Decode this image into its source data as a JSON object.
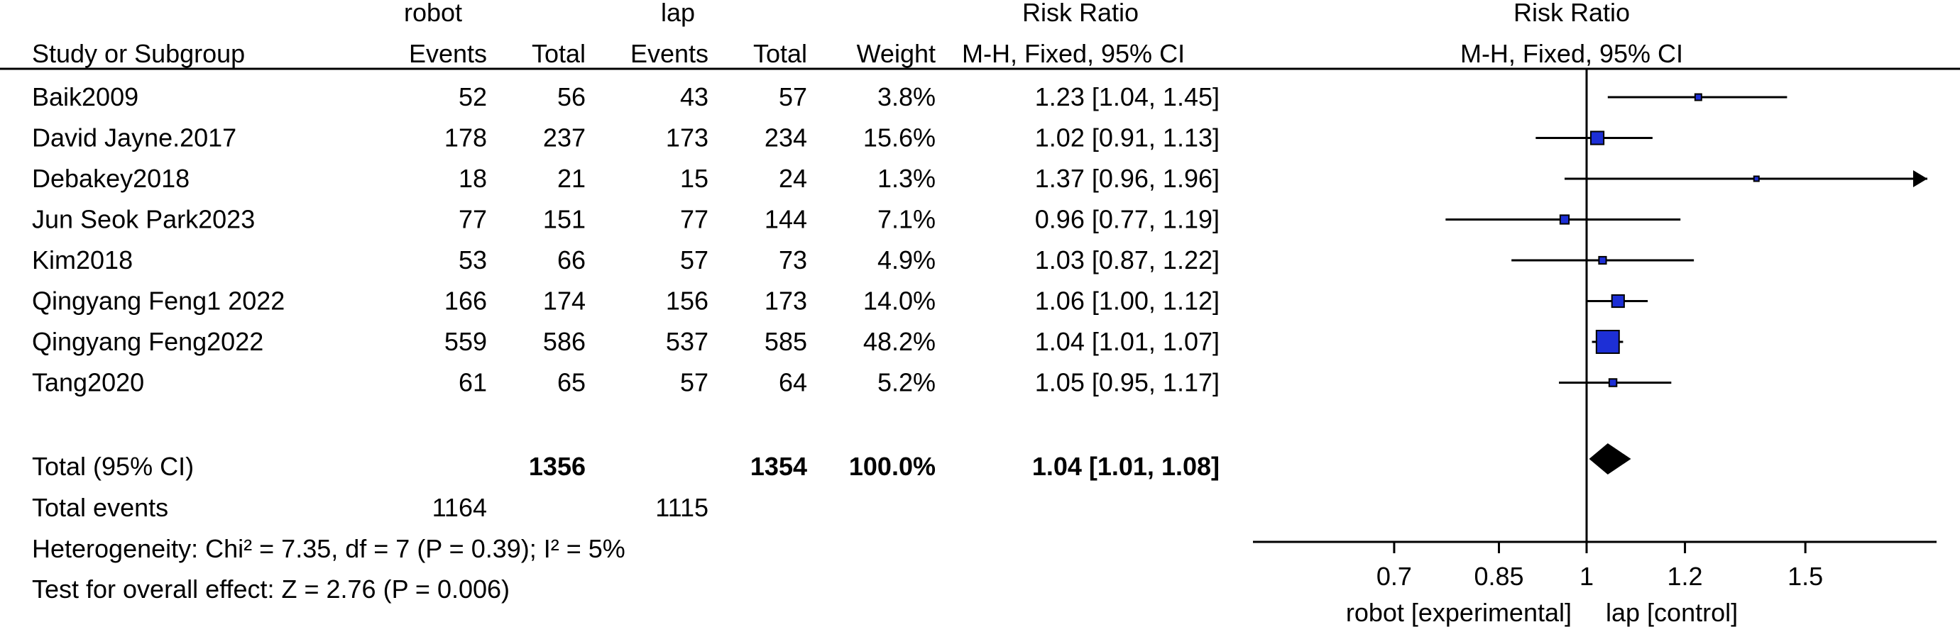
{
  "chart_data": {
    "type": "forest",
    "header": {
      "group_robot": "robot",
      "group_lap": "lap",
      "risk_ratio": "Risk Ratio",
      "study_or_subgroup": "Study or Subgroup",
      "events_robot": "Events",
      "total_robot": "Total",
      "events_lap": "Events",
      "total_lap": "Total",
      "weight": "Weight",
      "method": "M-H, Fixed, 95% CI",
      "plot_title": "Risk Ratio",
      "plot_method": "M-H, Fixed, 95% CI"
    },
    "studies": [
      {
        "name": "Baik2009",
        "robot_events": "52",
        "robot_total": "56",
        "lap_events": "43",
        "lap_total": "57",
        "weight": "3.8%",
        "ci_text": "1.23 [1.04, 1.45]",
        "rr": 1.23,
        "lo": 1.04,
        "hi": 1.45,
        "w": 3.8
      },
      {
        "name": "David Jayne.2017",
        "robot_events": "178",
        "robot_total": "237",
        "lap_events": "173",
        "lap_total": "234",
        "weight": "15.6%",
        "ci_text": "1.02 [0.91, 1.13]",
        "rr": 1.02,
        "lo": 0.91,
        "hi": 1.13,
        "w": 15.6
      },
      {
        "name": "Debakey2018",
        "robot_events": "18",
        "robot_total": "21",
        "lap_events": "15",
        "lap_total": "24",
        "weight": "1.3%",
        "ci_text": "1.37 [0.96, 1.96]",
        "rr": 1.37,
        "lo": 0.96,
        "hi": 1.96,
        "w": 1.3
      },
      {
        "name": "Jun Seok Park2023",
        "robot_events": "77",
        "robot_total": "151",
        "lap_events": "77",
        "lap_total": "144",
        "weight": "7.1%",
        "ci_text": "0.96 [0.77, 1.19]",
        "rr": 0.96,
        "lo": 0.77,
        "hi": 1.19,
        "w": 7.1
      },
      {
        "name": "Kim2018",
        "robot_events": "53",
        "robot_total": "66",
        "lap_events": "57",
        "lap_total": "73",
        "weight": "4.9%",
        "ci_text": "1.03 [0.87, 1.22]",
        "rr": 1.03,
        "lo": 0.87,
        "hi": 1.22,
        "w": 4.9
      },
      {
        "name": "Qingyang Feng1 2022",
        "robot_events": "166",
        "robot_total": "174",
        "lap_events": "156",
        "lap_total": "173",
        "weight": "14.0%",
        "ci_text": "1.06 [1.00, 1.12]",
        "rr": 1.06,
        "lo": 1.0,
        "hi": 1.12,
        "w": 14.0
      },
      {
        "name": "Qingyang Feng2022",
        "robot_events": "559",
        "robot_total": "586",
        "lap_events": "537",
        "lap_total": "585",
        "weight": "48.2%",
        "ci_text": "1.04 [1.01, 1.07]",
        "rr": 1.04,
        "lo": 1.01,
        "hi": 1.07,
        "w": 48.2
      },
      {
        "name": "Tang2020",
        "robot_events": "61",
        "robot_total": "65",
        "lap_events": "57",
        "lap_total": "64",
        "weight": "5.2%",
        "ci_text": "1.05 [0.95, 1.17]",
        "rr": 1.05,
        "lo": 0.95,
        "hi": 1.17,
        "w": 5.2
      }
    ],
    "total": {
      "label": "Total (95% CI)",
      "robot_total": "1356",
      "lap_total": "1354",
      "weight": "100.0%",
      "ci_text": "1.04 [1.01, 1.08]",
      "rr": 1.04,
      "lo": 1.01,
      "hi": 1.08
    },
    "total_events": {
      "label": "Total events",
      "robot": "1164",
      "lap": "1115"
    },
    "heterogeneity": "Heterogeneity: Chi² = 7.35, df = 7 (P = 0.39); I² = 5%",
    "overall_effect": "Test for overall effect: Z = 2.76 (P = 0.006)",
    "axis": {
      "scale": "log",
      "range": [
        0.6,
        1.6
      ],
      "null_value": 1,
      "ticks": [
        {
          "value": 0.7,
          "label": "0.7"
        },
        {
          "value": 0.85,
          "label": "0.85"
        },
        {
          "value": 1,
          "label": "1"
        },
        {
          "value": 1.2,
          "label": "1.2"
        },
        {
          "value": 1.5,
          "label": "1.5"
        }
      ],
      "label_left": "robot [experimental]",
      "label_right": "lap [control]"
    },
    "colors": {
      "square": "#1d2fd6",
      "diamond": "#000000",
      "line": "#000000"
    }
  }
}
